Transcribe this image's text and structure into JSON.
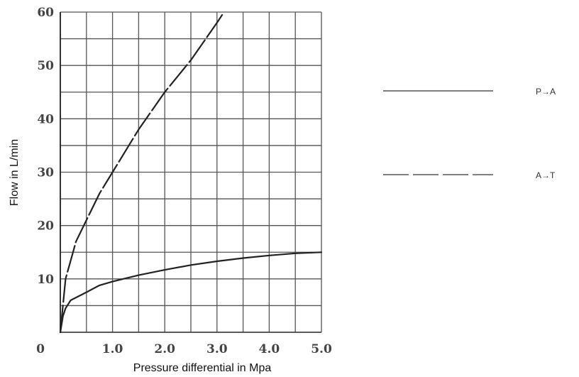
{
  "chart_data": {
    "type": "line",
    "xlabel": "Pressure differential in Mpa",
    "ylabel": "Flow in L/min",
    "xlim": [
      0,
      5
    ],
    "ylim": [
      0,
      60
    ],
    "x_ticks": [
      "0",
      "1.0",
      "2.0",
      "3.0",
      "4.0",
      "5.0"
    ],
    "y_ticks": [
      "10",
      "20",
      "30",
      "40",
      "50",
      "60"
    ],
    "grid": true,
    "legend_position": "right",
    "series": [
      {
        "name": "P→A",
        "style": "solid",
        "x": [
          0.0,
          0.05,
          0.1,
          0.2,
          0.3,
          0.5,
          0.75,
          1.0,
          1.5,
          2.0,
          2.5,
          3.0,
          3.5,
          4.0,
          4.5,
          5.0
        ],
        "y": [
          0.0,
          3.0,
          4.5,
          6.0,
          6.5,
          7.5,
          8.8,
          9.5,
          10.7,
          11.7,
          12.6,
          13.3,
          13.9,
          14.4,
          14.8,
          15.0
        ]
      },
      {
        "name": "A→T",
        "style": "dashed",
        "x": [
          0.0,
          0.1,
          0.3,
          0.5,
          0.75,
          1.0,
          1.25,
          1.5,
          2.0,
          2.5,
          3.0,
          3.1
        ],
        "y": [
          0.0,
          10.0,
          17.0,
          21.0,
          26.0,
          30.0,
          34.0,
          38.0,
          45.0,
          51.0,
          58.0,
          59.5
        ]
      }
    ],
    "colors": {
      "line": "#222222",
      "grid": "#555555",
      "minor_grid": "#888888"
    }
  }
}
